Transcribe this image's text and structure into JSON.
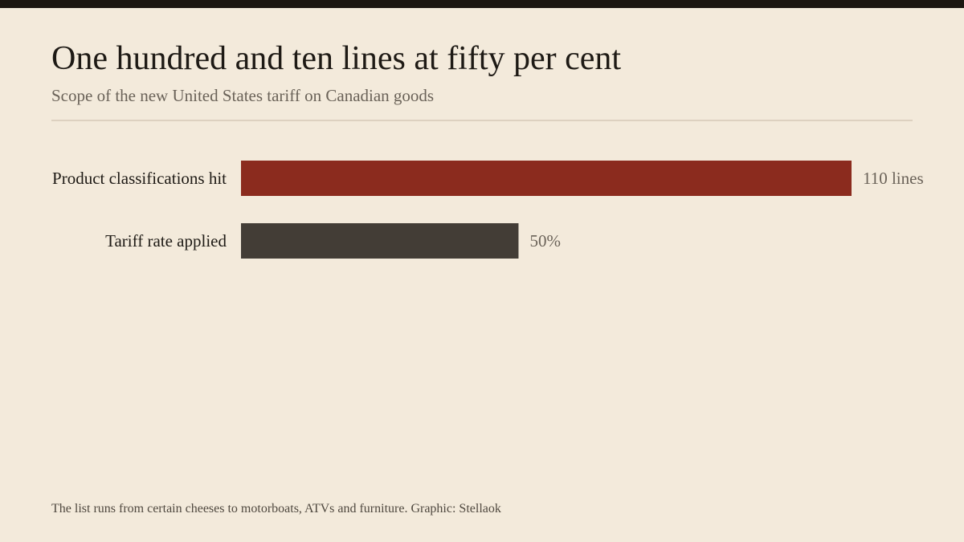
{
  "header": {
    "title": "One hundred and ten lines at fifty per cent",
    "subtitle": "Scope of the new United States tariff on Canadian goods"
  },
  "footer": {
    "note": "The list runs from certain cheeses to motorboats, ATVs and furniture. Graphic: Stellaok"
  },
  "colors": {
    "background": "#f3eadb",
    "top_bar": "#1c1711",
    "label_text": "#1e1a15",
    "value_text": "#6a6258"
  },
  "chart_data": {
    "type": "bar",
    "orientation": "horizontal",
    "title": "One hundred and ten lines at fifty per cent",
    "subtitle": "Scope of the new United States tariff on Canadian goods",
    "categories": [
      "Product classifications hit",
      "Tariff rate applied"
    ],
    "values": [
      110,
      50
    ],
    "value_labels": [
      "110 lines",
      "50%"
    ],
    "bar_colors": [
      "#8b2b1e",
      "#433d36"
    ],
    "grid": false,
    "legend": "none"
  }
}
